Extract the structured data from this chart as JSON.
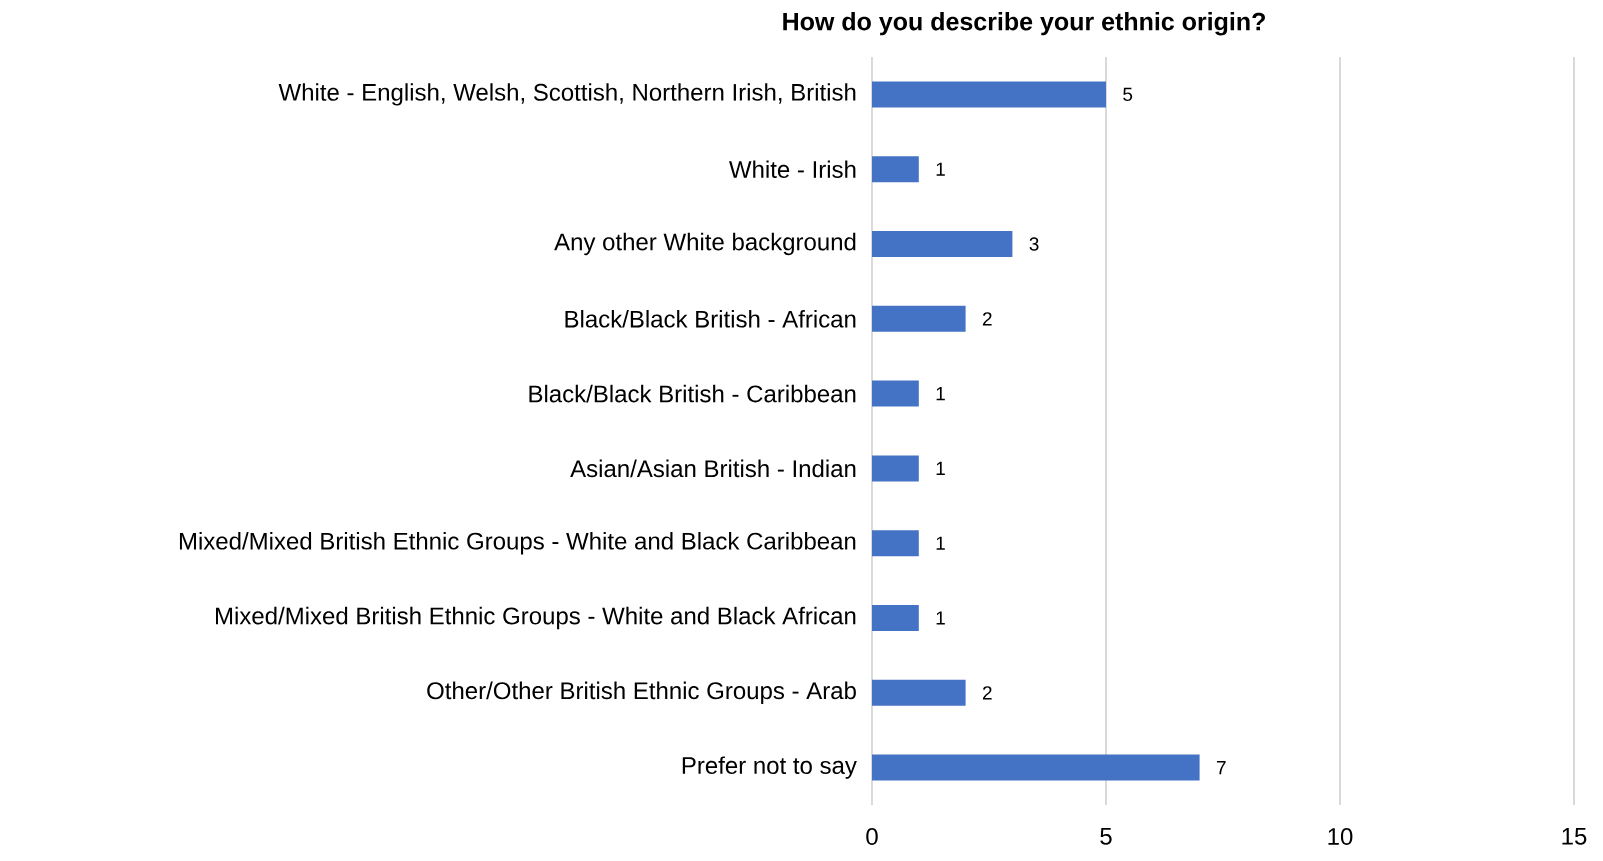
{
  "chart_data": {
    "type": "bar",
    "orientation": "horizontal",
    "title": "How do you describe your ethnic origin?",
    "categories": [
      "White - English, Welsh, Scottish, Northern Irish, British",
      "White - Irish",
      "Any other White background",
      "Black/Black British - African",
      "Black/Black British - Caribbean",
      "Asian/Asian British - Indian",
      "Mixed/Mixed British Ethnic Groups - White and Black Caribbean",
      "Mixed/Mixed British Ethnic Groups - White and Black African",
      "Other/Other British Ethnic Groups - Arab",
      "Prefer not to say"
    ],
    "values": [
      5,
      1,
      3,
      2,
      1,
      1,
      1,
      1,
      2,
      7
    ],
    "color": "#4472c4",
    "xlim": [
      0,
      15
    ],
    "xticks": [
      0,
      5,
      10,
      15
    ],
    "grid": "x",
    "data_labels": true
  }
}
